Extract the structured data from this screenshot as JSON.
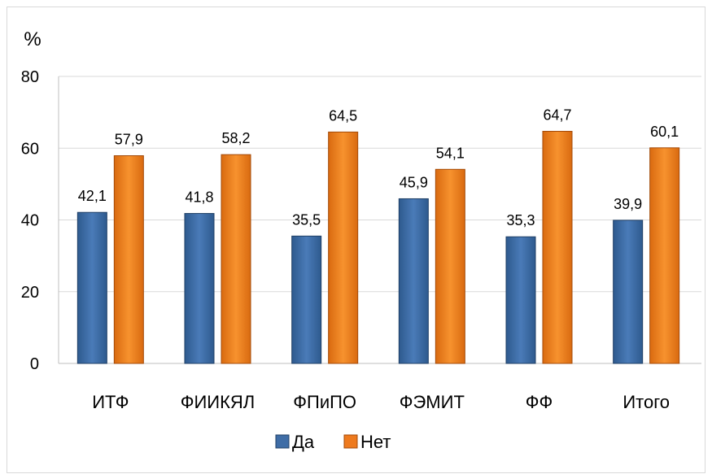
{
  "chart_data": {
    "type": "bar",
    "y_unit_label": "%",
    "categories": [
      "ИТФ",
      "ФИИКЯЛ",
      "ФПиПО",
      "ФЭМИТ",
      "ФФ",
      "Итого"
    ],
    "series": [
      {
        "name": "Да",
        "values": [
          42.1,
          41.8,
          35.5,
          45.9,
          35.3,
          39.9
        ],
        "labels": [
          "42,1",
          "41,8",
          "35,5",
          "45,9",
          "35,3",
          "39,9"
        ],
        "color": "#3F6DA6"
      },
      {
        "name": "Нет",
        "values": [
          57.9,
          58.2,
          64.5,
          54.1,
          64.7,
          60.1
        ],
        "labels": [
          "57,9",
          "58,2",
          "64,5",
          "54,1",
          "64,7",
          "60,1"
        ],
        "color": "#EE7A1E"
      }
    ],
    "ylim": [
      0,
      80
    ],
    "yticks": [
      0,
      20,
      40,
      60,
      80
    ],
    "grid": true,
    "legend": "bottom"
  }
}
